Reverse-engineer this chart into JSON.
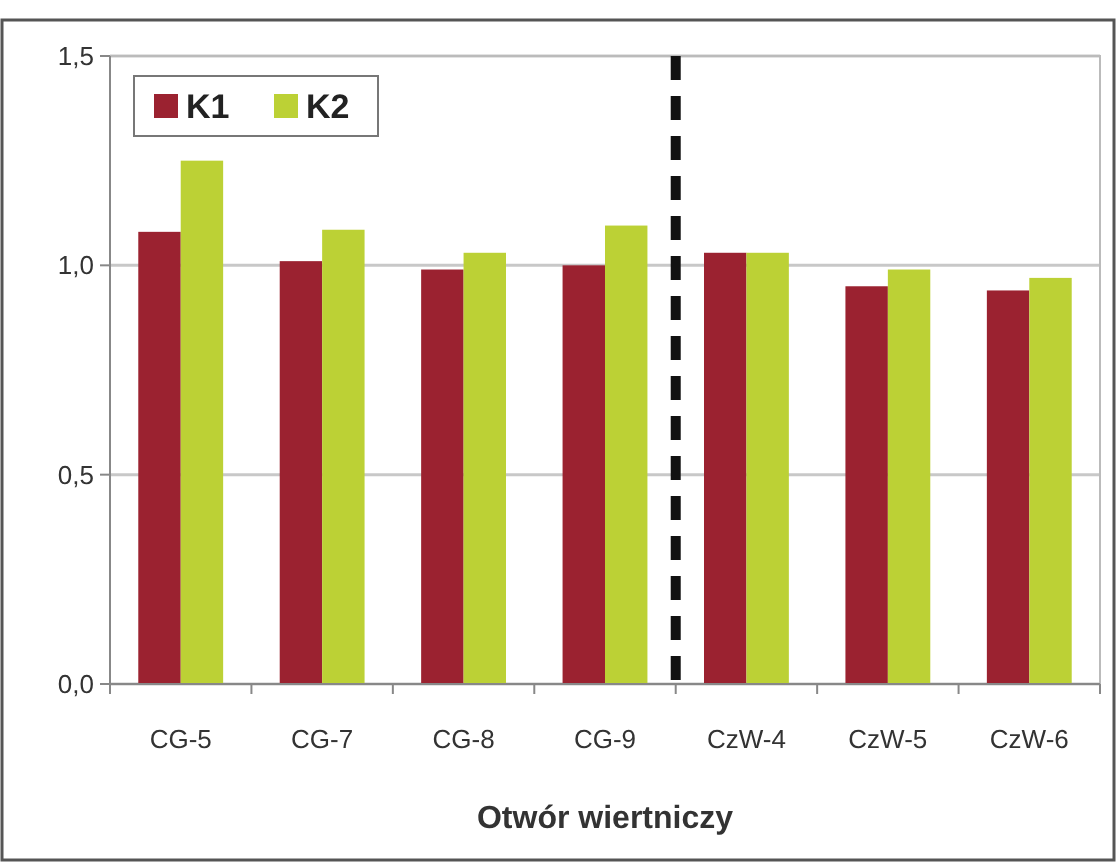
{
  "chart_data": {
    "type": "bar",
    "xlabel": "Otwór wiertniczy",
    "categories": [
      "CG-5",
      "CG-7",
      "CG-8",
      "CG-9",
      "CzW-4",
      "CzW-5",
      "CzW-6"
    ],
    "series": [
      {
        "name": "K1",
        "color": "#9b2230",
        "values": [
          1.08,
          1.01,
          0.99,
          1.0,
          1.03,
          0.95,
          0.94
        ]
      },
      {
        "name": "K2",
        "color": "#bcd135",
        "values": [
          1.25,
          1.085,
          1.03,
          1.095,
          1.03,
          0.99,
          0.97
        ]
      }
    ],
    "ylim": [
      0,
      1.5
    ],
    "yticks": [
      {
        "value": 0,
        "label": "0,0"
      },
      {
        "value": 0.5,
        "label": "0,5"
      },
      {
        "value": 1,
        "label": "1,0"
      },
      {
        "value": 1.5,
        "label": "1,5"
      }
    ],
    "grid": "y",
    "legend": "top left"
  }
}
